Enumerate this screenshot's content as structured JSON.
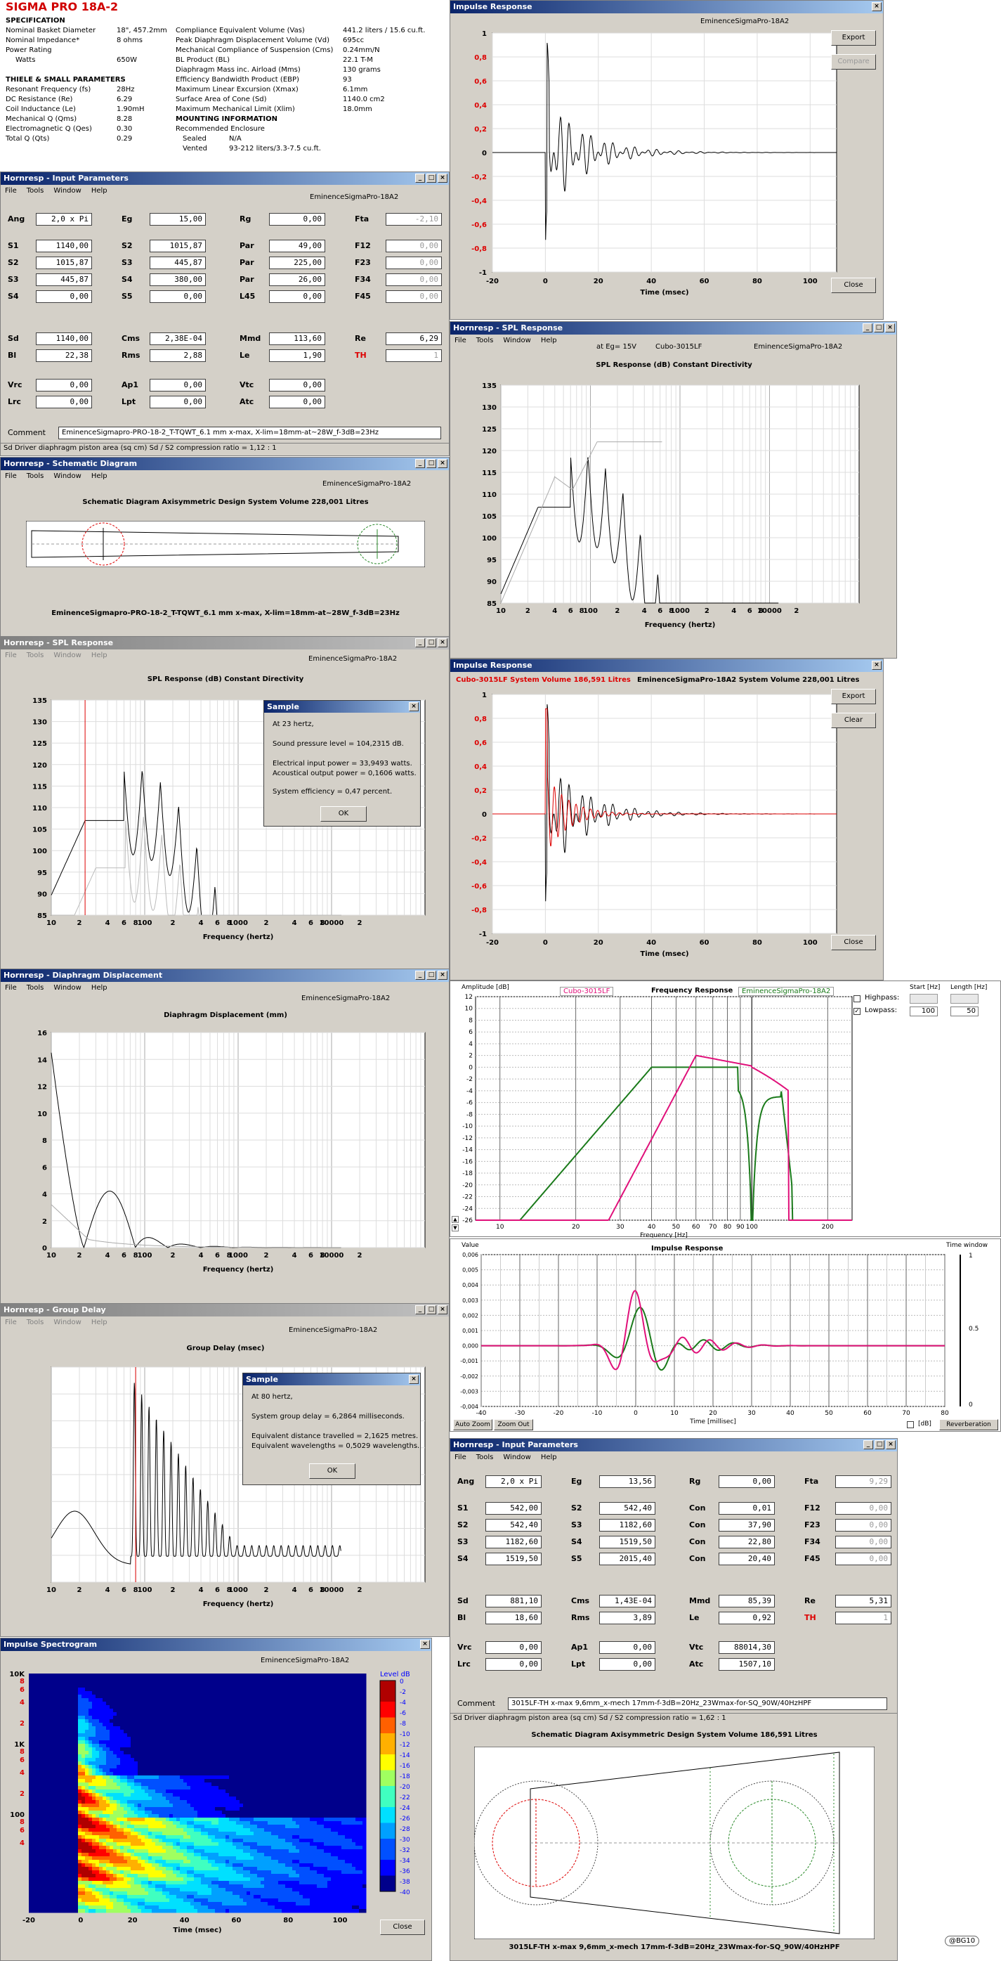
{
  "spec": {
    "title": "SIGMA PRO 18A-2",
    "heading": "SPECIFICATION",
    "left": [
      [
        "Nominal Basket Diameter",
        "18\", 457.2mm"
      ],
      [
        "Nominal Impedance*",
        "8 ohms"
      ],
      [
        "Power Rating",
        ""
      ],
      [
        "Watts",
        "650W"
      ],
      [
        "",
        ""
      ],
      [
        "THIELE & SMALL PARAMETERS",
        ""
      ],
      [
        "Resonant Frequency (fs)",
        "28Hz"
      ],
      [
        "DC Resistance (Re)",
        "6.29"
      ],
      [
        "Coil Inductance (Le)",
        "1.90mH"
      ],
      [
        "Mechanical Q (Qms)",
        "8.28"
      ],
      [
        "Electromagnetic Q (Qes)",
        "0.30"
      ],
      [
        "Total Q (Qts)",
        "0.29"
      ]
    ],
    "right": [
      [
        "Compliance Equivalent Volume (Vas)",
        "441.2 liters / 15.6 cu.ft."
      ],
      [
        "Peak Diaphragm Displacement Volume (Vd)",
        "695cc"
      ],
      [
        "Mechanical Compliance of Suspension (Cms)",
        "0.24mm/N"
      ],
      [
        "BL Product (BL)",
        "22.1 T-M"
      ],
      [
        "Diaphragm Mass inc. Airload (Mms)",
        "130 grams"
      ],
      [
        "Efficiency Bandwidth Product (EBP)",
        "93"
      ],
      [
        "Maximum Linear Excursion (Xmax)",
        "6.1mm"
      ],
      [
        "Surface Area of Cone (Sd)",
        "1140.0 cm2"
      ],
      [
        "Maximum Mechanical Limit (Xlim)",
        "18.0mm"
      ],
      [
        "MOUNTING INFORMATION",
        ""
      ],
      [
        "Recommended Enclosure",
        ""
      ],
      [
        "Sealed",
        "N/A"
      ],
      [
        "Vented",
        "93-212 liters/3.3-7.5 cu.ft."
      ]
    ]
  },
  "menu": {
    "file": "File",
    "tools": "Tools",
    "window": "Window",
    "help": "Help"
  },
  "input1": {
    "title": "Hornresp - Input Parameters",
    "tag": "EminenceSigmaPro-18A2",
    "rows": [
      [
        "Ang",
        "2,0 x Pi",
        "Eg",
        "15,00",
        "Rg",
        "0,00",
        "Fta",
        "-2,10"
      ],
      [
        "S1",
        "1140,00",
        "S2",
        "1015,87",
        "Par",
        "49,00",
        "F12",
        "0,00"
      ],
      [
        "S2",
        "1015,87",
        "S3",
        "445,87",
        "Par",
        "225,00",
        "F23",
        "0,00"
      ],
      [
        "S3",
        "445,87",
        "S4",
        "380,00",
        "Par",
        "26,00",
        "F34",
        "0,00"
      ],
      [
        "S4",
        "0,00",
        "S5",
        "0,00",
        "L45",
        "0,00",
        "F45",
        "0,00"
      ],
      [
        "Sd",
        "1140,00",
        "Cms",
        "2,38E-04",
        "Mmd",
        "113,60",
        "Re",
        "6,29"
      ],
      [
        "Bl",
        "22,38",
        "Rms",
        "2,88",
        "Le",
        "1,90",
        "TH",
        "1"
      ],
      [
        "Vrc",
        "0,00",
        "Ap1",
        "0,00",
        "Vtc",
        "0,00",
        "",
        ""
      ],
      [
        "Lrc",
        "0,00",
        "Lpt",
        "0,00",
        "Atc",
        "0,00",
        "",
        ""
      ]
    ],
    "comment_label": "Comment",
    "comment": "EminenceSigmapro-PRO-18-2_T-TQWT_6.1 mm x-max, X-lim=18mm-at~28W_f-3dB=23Hz",
    "status": "Sd   Driver diaphragm piston area  (sq cm)   Sd / S2 compression ratio = 1,12 : 1"
  },
  "schem1": {
    "title": "Hornresp - Schematic Diagram",
    "tag": "EminenceSigmaPro-18A2",
    "heading": "Schematic Diagram   Axisymmetric Design   System Volume 228,001 Litres",
    "caption": "EminenceSigmapro-PRO-18-2_T-TQWT_6.1 mm x-max, X-lim=18mm-at~28W_f-3dB=23Hz"
  },
  "spl1": {
    "title": "Hornresp - SPL Response",
    "tag": "EminenceSigmaPro-18A2",
    "heading": "SPL Response (dB)   Constant Directivity",
    "xlabel": "Frequency (hertz)",
    "dialog": {
      "title": "Sample",
      "l1": "At 23 hertz,",
      "l2": "Sound pressure level = 104,2315 dB.",
      "l3": "Electrical input power = 33,9493 watts.",
      "l4": "Acoustical output power = 0,1606 watts.",
      "l5": "System efficiency = 0,47 percent.",
      "ok": "OK"
    }
  },
  "disp": {
    "title": "Hornresp - Diaphragm Displacement",
    "tag": "EminenceSigmaPro-18A2",
    "heading": "Diaphragm Displacement (mm)",
    "xlabel": "Frequency (hertz)"
  },
  "gd": {
    "title": "Hornresp - Group Delay",
    "tag": "EminenceSigmaPro-18A2",
    "heading": "Group Delay (msec)",
    "xlabel": "Frequency (hertz)",
    "dialog": {
      "title": "Sample",
      "l1": "At 80 hertz,",
      "l2": "System group delay = 6,2864 milliseconds.",
      "l3": "Equivalent distance travelled = 2,1625 metres.",
      "l4": "Equivalent wavelengths = 0,5029 wavelengths.",
      "ok": "OK"
    }
  },
  "spec2": {
    "title": "Impulse Spectrogram",
    "tag": "EminenceSigmaPro-18A2",
    "level": "Level  dB",
    "xlabel": "Time (msec)",
    "close": "Close"
  },
  "imp1": {
    "title": "Impulse Response",
    "tag": "EminenceSigmaPro-18A2",
    "xlabel": "Time (msec)",
    "export": "Export",
    "compare": "Compare",
    "close": "Close"
  },
  "spl2": {
    "title": "Hornresp - SPL Response",
    "tag1": "at Eg= 15V",
    "tag2": "Cubo-3015LF",
    "tag3": "EminenceSigmaPro-18A2",
    "heading": "SPL Response (dB)   Constant Directivity",
    "xlabel": "Frequency (hertz)"
  },
  "imp2": {
    "title": "Impulse Response",
    "header_red": "Cubo-3015LF  System Volume 186,591 Litres",
    "header_black": "EminenceSigmaPro-18A2  System Volume 228,001 Litres",
    "xlabel": "Time (msec)",
    "export": "Export",
    "clear": "Clear",
    "close": "Close"
  },
  "fr": {
    "amp": "Amplitude [dB]",
    "title": "Frequency Response",
    "cubo": "Cubo-3015LF",
    "emin": "EminenceSigmaPro-18A2",
    "start": "Start [Hz]",
    "length": "Length [Hz]",
    "highpass": "Highpass:",
    "lowpass": "Lowpass:",
    "lp_start": "100",
    "lp_len": "50",
    "xlabel": "Frequency [Hz]"
  },
  "ir": {
    "value": "Value",
    "title": "Impulse Response",
    "window": "Time window",
    "xlabel": "Time [millisec]",
    "autozoom": "Auto Zoom",
    "zoomout": "Zoom Out",
    "db": "[dB]",
    "reverb": "Reverberation"
  },
  "input2": {
    "title": "Hornresp - Input Parameters",
    "rows": [
      [
        "Ang",
        "2,0 x Pi",
        "Eg",
        "13,56",
        "Rg",
        "0,00",
        "Fta",
        "9,29"
      ],
      [
        "S1",
        "542,00",
        "S2",
        "542,40",
        "Con",
        "0,01",
        "F12",
        "0,00"
      ],
      [
        "S2",
        "542,40",
        "S3",
        "1182,60",
        "Con",
        "37,90",
        "F23",
        "0,00"
      ],
      [
        "S3",
        "1182,60",
        "S4",
        "1519,50",
        "Con",
        "22,80",
        "F34",
        "0,00"
      ],
      [
        "S4",
        "1519,50",
        "S5",
        "2015,40",
        "Con",
        "20,40",
        "F45",
        "0,00"
      ],
      [
        "Sd",
        "881,10",
        "Cms",
        "1,43E-04",
        "Mmd",
        "85,39",
        "Re",
        "5,31"
      ],
      [
        "Bl",
        "18,60",
        "Rms",
        "3,89",
        "Le",
        "0,92",
        "TH",
        "1"
      ],
      [
        "Vrc",
        "0,00",
        "Ap1",
        "0,00",
        "Vtc",
        "88014,30",
        "",
        ""
      ],
      [
        "Lrc",
        "0,00",
        "Lpt",
        "0,00",
        "Atc",
        "1507,10",
        "",
        ""
      ]
    ],
    "comment_label": "Comment",
    "comment": "3015LF-TH x-max 9,6mm_x-mech 17mm-f-3dB=20Hz_23Wmax-for-SQ_90W/40HzHPF",
    "status": "Sd   Driver diaphragm piston area  (sq cm)   Sd / S2 compression ratio = 1,62 : 1"
  },
  "schem2": {
    "heading": "Schematic Diagram   Axisymmetric Design   System Volume 186,591 Litres",
    "caption": "3015LF-TH x-max 9,6mm_x-mech 17mm-f-3dB=20Hz_23Wmax-for-SQ_90W/40HzHPF"
  },
  "credit": "@BG10",
  "colors": {
    "title_active": "#0a246a",
    "title_inactive": "#808080",
    "red": "#ff0000",
    "pink": "#e0107a",
    "green": "#1a7a1a"
  }
}
